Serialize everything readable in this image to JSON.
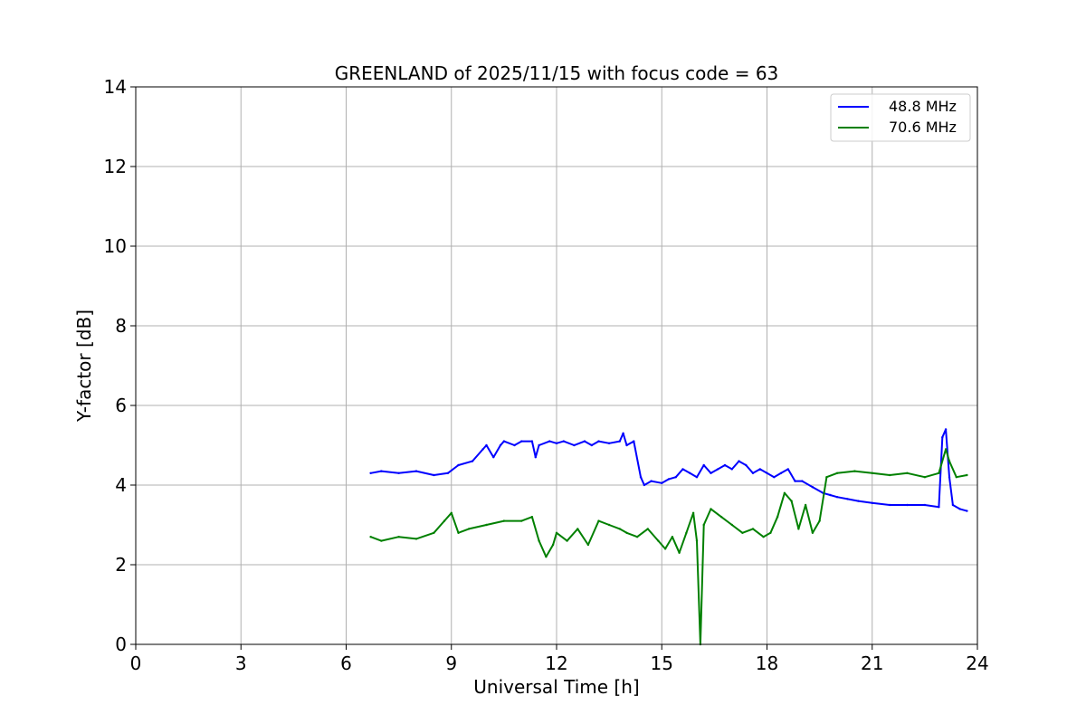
{
  "chart_data": {
    "type": "line",
    "title": "GREENLAND of 2025/11/15 with focus code = 63",
    "xlabel": "Universal Time [h]",
    "ylabel": "Y-factor [dB]",
    "xlim": [
      0,
      24
    ],
    "ylim": [
      0,
      14
    ],
    "xticks": [
      0,
      3,
      6,
      9,
      12,
      15,
      18,
      21,
      24
    ],
    "yticks": [
      0,
      2,
      4,
      6,
      8,
      10,
      12,
      14
    ],
    "grid": true,
    "legend_position": "top-right",
    "series": [
      {
        "name": "48.8 MHz",
        "color": "#0000ff",
        "x": [
          6.7,
          7.0,
          7.5,
          8.0,
          8.5,
          8.9,
          9.2,
          9.6,
          9.9,
          10.0,
          10.2,
          10.4,
          10.5,
          10.8,
          11.0,
          11.3,
          11.4,
          11.5,
          11.8,
          12.0,
          12.2,
          12.5,
          12.8,
          13.0,
          13.2,
          13.5,
          13.8,
          13.9,
          14.0,
          14.2,
          14.4,
          14.5,
          14.7,
          15.0,
          15.2,
          15.4,
          15.6,
          15.8,
          16.0,
          16.2,
          16.4,
          16.6,
          16.8,
          17.0,
          17.2,
          17.4,
          17.6,
          17.8,
          18.0,
          18.2,
          18.4,
          18.6,
          18.8,
          19.0,
          19.3,
          19.6,
          19.8,
          20.0,
          20.3,
          20.6,
          21.0,
          21.5,
          22.0,
          22.5,
          22.9,
          23.0,
          23.1,
          23.2,
          23.3,
          23.5,
          23.7
        ],
        "values": [
          4.3,
          4.35,
          4.3,
          4.35,
          4.25,
          4.3,
          4.5,
          4.6,
          4.9,
          5.0,
          4.7,
          5.0,
          5.1,
          5.0,
          5.1,
          5.1,
          4.7,
          5.0,
          5.1,
          5.05,
          5.1,
          5.0,
          5.1,
          5.0,
          5.1,
          5.05,
          5.1,
          5.3,
          5.0,
          5.1,
          4.2,
          4.0,
          4.1,
          4.05,
          4.15,
          4.2,
          4.4,
          4.3,
          4.2,
          4.5,
          4.3,
          4.4,
          4.5,
          4.4,
          4.6,
          4.5,
          4.3,
          4.4,
          4.3,
          4.2,
          4.3,
          4.4,
          4.1,
          4.1,
          3.95,
          3.8,
          3.75,
          3.7,
          3.65,
          3.6,
          3.55,
          3.5,
          3.5,
          3.5,
          3.45,
          5.2,
          5.4,
          4.2,
          3.5,
          3.4,
          3.35
        ]
      },
      {
        "name": "70.6 MHz",
        "color": "#008000",
        "x": [
          6.7,
          7.0,
          7.5,
          8.0,
          8.5,
          8.8,
          9.0,
          9.2,
          9.5,
          10.0,
          10.5,
          11.0,
          11.3,
          11.5,
          11.7,
          11.9,
          12.0,
          12.3,
          12.6,
          12.9,
          13.2,
          13.5,
          13.8,
          14.0,
          14.3,
          14.6,
          14.9,
          15.1,
          15.3,
          15.5,
          15.7,
          15.9,
          16.0,
          16.1,
          16.2,
          16.4,
          16.7,
          17.0,
          17.3,
          17.6,
          17.9,
          18.1,
          18.3,
          18.5,
          18.7,
          18.9,
          19.1,
          19.3,
          19.5,
          19.7,
          20.0,
          20.5,
          21.0,
          21.5,
          22.0,
          22.5,
          22.9,
          23.1,
          23.2,
          23.4,
          23.7
        ],
        "values": [
          2.7,
          2.6,
          2.7,
          2.65,
          2.8,
          3.1,
          3.3,
          2.8,
          2.9,
          3.0,
          3.1,
          3.1,
          3.2,
          2.6,
          2.2,
          2.5,
          2.8,
          2.6,
          2.9,
          2.5,
          3.1,
          3.0,
          2.9,
          2.8,
          2.7,
          2.9,
          2.6,
          2.4,
          2.7,
          2.3,
          2.8,
          3.3,
          2.6,
          0.0,
          3.0,
          3.4,
          3.2,
          3.0,
          2.8,
          2.9,
          2.7,
          2.8,
          3.2,
          3.8,
          3.6,
          2.9,
          3.5,
          2.8,
          3.1,
          4.2,
          4.3,
          4.35,
          4.3,
          4.25,
          4.3,
          4.2,
          4.3,
          4.9,
          4.6,
          4.2,
          4.25
        ]
      }
    ]
  }
}
